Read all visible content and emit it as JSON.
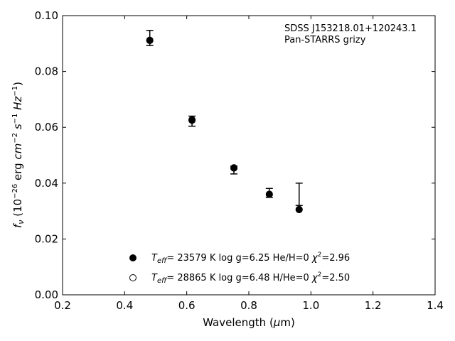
{
  "chart_data": {
    "type": "scatter",
    "xlabel": "Wavelength (μm)",
    "ylabel": "f_ν (10⁻²⁶ erg cm⁻² s⁻¹ Hz⁻¹)",
    "xlim": [
      0.2,
      1.4
    ],
    "ylim": [
      0.0,
      0.1
    ],
    "x_ticks": [
      "0.2",
      "0.4",
      "0.6",
      "0.8",
      "1.0",
      "1.2",
      "1.4"
    ],
    "y_ticks": [
      "0.00",
      "0.02",
      "0.04",
      "0.06",
      "0.08",
      "0.10"
    ],
    "annotation": [
      "SDSS J153218.01+120243.1",
      "Pan-STARRS grizy"
    ],
    "grid": false,
    "legend_position": "lower-center",
    "observed": {
      "x": [
        0.481,
        0.617,
        0.752,
        0.866,
        0.962
      ],
      "y": [
        0.092,
        0.0622,
        0.0447,
        0.0365,
        0.036
      ],
      "err": [
        0.0027,
        0.0018,
        0.0014,
        0.0016,
        0.004
      ]
    },
    "series": [
      {
        "name": "T_eff= 23579 K  log g=6.25  He/H=0  χ²=2.96",
        "marker": "filled-circle",
        "x": [
          0.481,
          0.617,
          0.752,
          0.866,
          0.962
        ],
        "y": [
          0.0911,
          0.0625,
          0.0455,
          0.036,
          0.0305
        ]
      },
      {
        "name": "T_eff= 28865 K  log g=6.48  H/He=0  χ²=2.50",
        "marker": "open-circle",
        "x": [
          0.481,
          0.617,
          0.752,
          0.866,
          0.962
        ],
        "y": [
          0.0912,
          0.0627,
          0.0454,
          0.036,
          0.0306
        ]
      }
    ]
  }
}
